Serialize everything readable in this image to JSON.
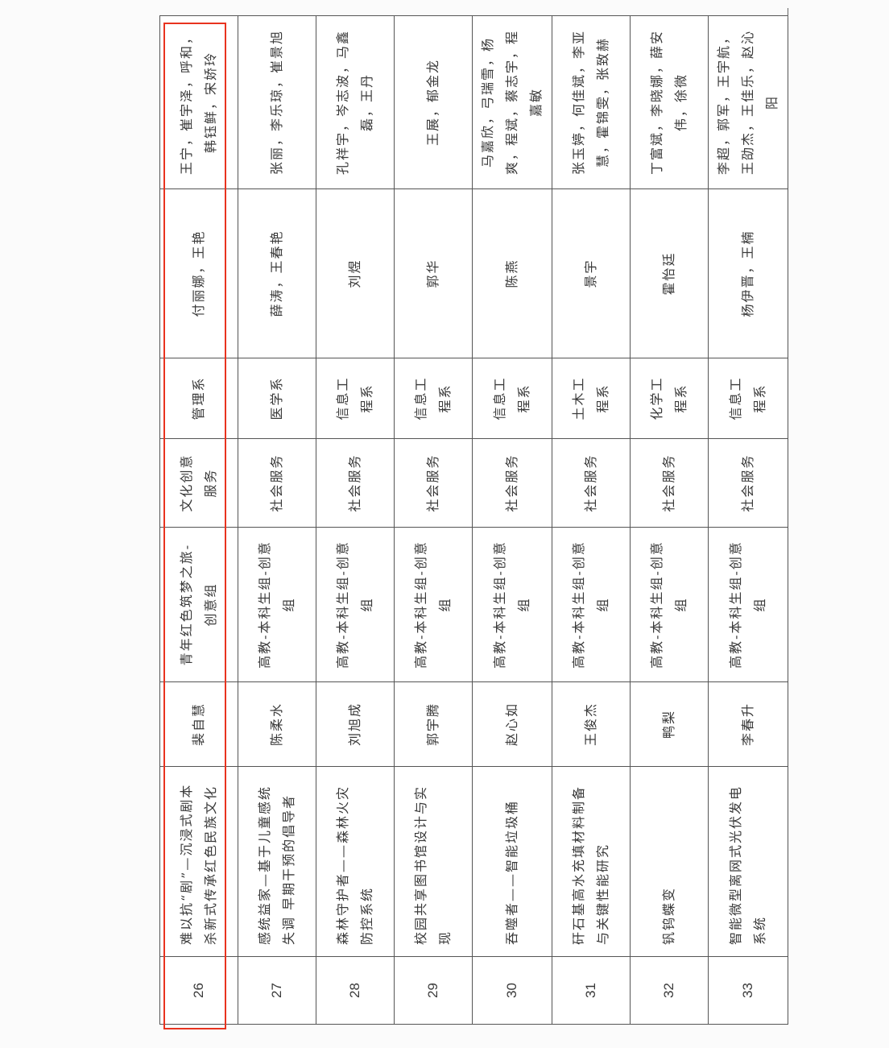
{
  "highlight_color": "#e8331f",
  "rows": [
    {
      "no": "26",
      "title": "难以抗“剧”—沉浸式剧本杀新式传承红色民族文化",
      "leader": "裴自慧",
      "group": "青年红色筑梦之旅-创意组",
      "category": "文化创意服务",
      "dept": "管理系",
      "teachers": "付丽娜，王艳",
      "members": "王宁，崔宇泽，呼和，韩钰鲜，宋娇玲"
    },
    {
      "no": "27",
      "title": "感统益家—基于儿童感统失调 早期干预的倡导者",
      "leader": "陈柔水",
      "group": "高教-本科生组-创意组",
      "category": "社会服务",
      "dept": "医学系",
      "teachers": "薛涛，王春艳",
      "members": "张丽，李乐琼，崔景旭"
    },
    {
      "no": "28",
      "title": "森林守护者——森林火灾防控系统",
      "leader": "刘旭成",
      "group": "高教-本科生组-创意组",
      "category": "社会服务",
      "dept": "信息工程系",
      "teachers": "刘煜",
      "members": "孔祥宇，岑志波，马鑫磊，王丹"
    },
    {
      "no": "29",
      "title": "校园共享图书馆设计与实现",
      "leader": "郭宇腾",
      "group": "高教-本科生组-创意组",
      "category": "社会服务",
      "dept": "信息工程系",
      "teachers": "郭华",
      "members": "王展，郁金龙"
    },
    {
      "no": "30",
      "title": "吞噬者——智能垃圾桶",
      "leader": "赵心如",
      "group": "高教-本科生组-创意组",
      "category": "社会服务",
      "dept": "信息工程系",
      "teachers": "陈燕",
      "members": "马嘉欣，弓瑞雪，杨爽，程斌，蔡志宇，程嘉敏"
    },
    {
      "no": "31",
      "title": "矸石基高水充填材料制备与关键性能研究",
      "leader": "王俊杰",
      "group": "高教-本科生组-创意组",
      "category": "社会服务",
      "dept": "土木工程系",
      "teachers": "景宇",
      "members": "张玉婷，何佳斌，李亚慧，霍锦雯，张致赫"
    },
    {
      "no": "32",
      "title": "钒钨蝶变",
      "leader": "鸭梨",
      "group": "高教-本科生组-创意组",
      "category": "社会服务",
      "dept": "化学工程系",
      "teachers": "霍怡廷",
      "members": "丁富斌，李晓娜，薛安伟，徐微"
    },
    {
      "no": "33",
      "title": "智能微型离网式光伏发电系统",
      "leader": "李春升",
      "group": "高教-本科生组-创意组",
      "category": "社会服务",
      "dept": "信息工程系",
      "teachers": "杨伊晋，王楠",
      "members": "李超，郭军，王宇航，王劭杰，王佳乐，赵沁阳"
    }
  ]
}
